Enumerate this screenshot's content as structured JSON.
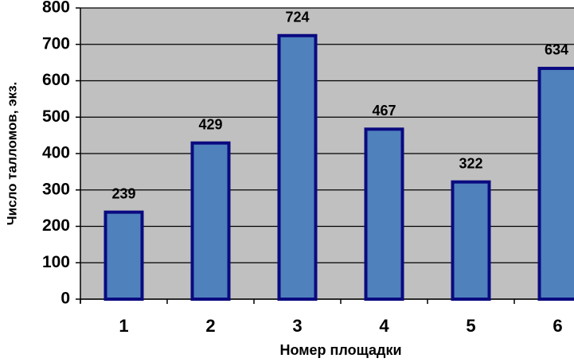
{
  "chart_data": {
    "type": "bar",
    "categories": [
      "1",
      "2",
      "3",
      "4",
      "5",
      "6"
    ],
    "values": [
      239,
      429,
      724,
      467,
      322,
      634
    ],
    "color": "#4f81bd",
    "edge_color": "#0a0a80",
    "ylim": [
      0,
      800
    ],
    "yticks": [
      0,
      100,
      200,
      300,
      400,
      500,
      600,
      700,
      800
    ],
    "grid": true,
    "y_label": "Число талломов, экз.",
    "x_label": "Номер площадки"
  }
}
